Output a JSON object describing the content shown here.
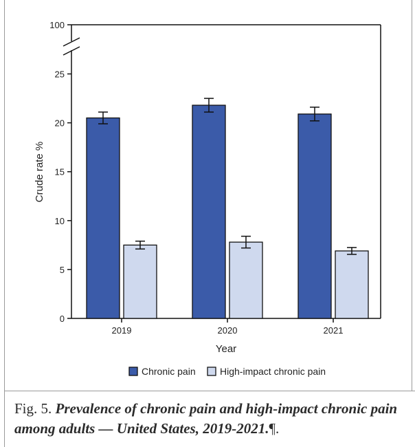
{
  "chart_data": {
    "type": "bar",
    "categories": [
      "2019",
      "2020",
      "2021"
    ],
    "series": [
      {
        "name": "Chronic pain",
        "values": [
          20.5,
          21.8,
          20.9
        ],
        "errors": [
          0.6,
          0.7,
          0.7
        ],
        "color": "#3b5ba9"
      },
      {
        "name": "High-impact chronic pain",
        "values": [
          7.5,
          7.8,
          6.9
        ],
        "errors": [
          0.4,
          0.6,
          0.35
        ],
        "color": "#cfd9ee"
      }
    ],
    "xlabel": "Year",
    "ylabel": "Crude rate %",
    "ylim": [
      0,
      25
    ],
    "yticks": [
      "0",
      "5",
      "10",
      "15",
      "20",
      "25"
    ],
    "axis_break": {
      "top_label": "100"
    },
    "legend_position": "bottom-center"
  },
  "caption": {
    "prefix": "Fig. 5.",
    "text": "Prevalence of chronic pain and high-impact chronic pain among adults — United States, 2019-2021.",
    "suffix": "¶."
  }
}
